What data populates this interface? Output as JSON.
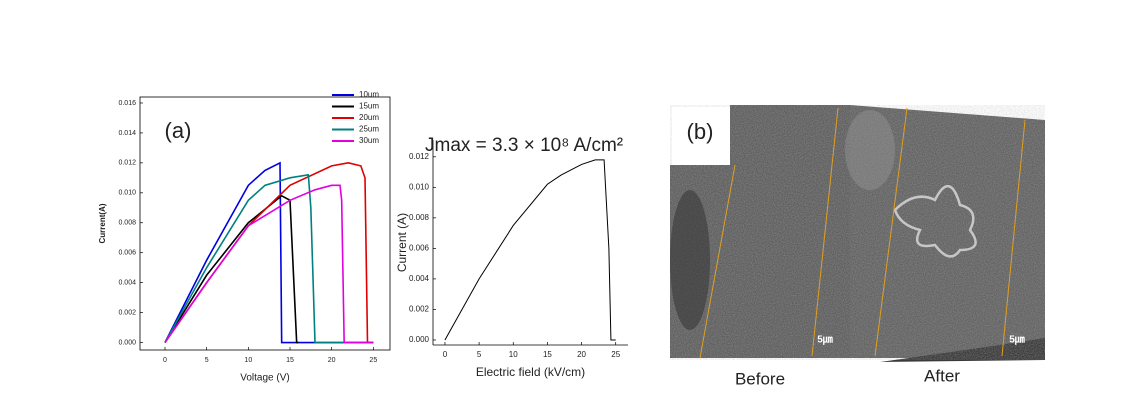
{
  "chart_data": [
    {
      "type": "line",
      "annotation": "(a)",
      "x_label": "Voltage (V)",
      "y_label": "Current(A)",
      "xlim": [
        -3,
        27
      ],
      "xticks": [
        0,
        5,
        10,
        15,
        20,
        25
      ],
      "ylim": [
        -0.0005,
        0.0164
      ],
      "yticks": [
        {
          "value": 0,
          "label": "0.000"
        },
        {
          "value": 0.002,
          "label": "0.002"
        },
        {
          "value": 0.004,
          "label": "0.004"
        },
        {
          "value": 0.006,
          "label": "0.006"
        },
        {
          "value": 0.008,
          "label": "0.008"
        },
        {
          "value": 0.01,
          "label": "0.010"
        },
        {
          "value": 0.012,
          "label": "0.012"
        },
        {
          "value": 0.014,
          "label": "0.014"
        },
        {
          "value": 0.016,
          "label": "0.016"
        }
      ],
      "legend": "upper right",
      "series": [
        {
          "name": "10um",
          "color": "#0000e0",
          "x": [
            0,
            5,
            10,
            12,
            13.8,
            14,
            25
          ],
          "values": [
            0,
            0.0055,
            0.0105,
            0.0115,
            0.012,
            0,
            0
          ]
        },
        {
          "name": "15um",
          "color": "#000000",
          "x": [
            0,
            5,
            10,
            14,
            15,
            15.8,
            16
          ],
          "values": [
            0,
            0.0045,
            0.008,
            0.0098,
            0.0095,
            0,
            0
          ]
        },
        {
          "name": "20um",
          "color": "#e00000",
          "x": [
            0,
            5,
            10,
            15,
            20,
            22,
            23.5,
            24,
            24.3,
            25
          ],
          "values": [
            0,
            0.004,
            0.0078,
            0.0105,
            0.0118,
            0.012,
            0.0118,
            0.011,
            0,
            0
          ]
        },
        {
          "name": "25um",
          "color": "#008080",
          "x": [
            0,
            5,
            10,
            12,
            15,
            17.2,
            17.5,
            18,
            25
          ],
          "values": [
            0,
            0.005,
            0.0095,
            0.0105,
            0.011,
            0.0112,
            0.009,
            0,
            0
          ]
        },
        {
          "name": "30um",
          "color": "#e000e0",
          "x": [
            0,
            5,
            10,
            15,
            18,
            20,
            21,
            21.2,
            21.5,
            25
          ],
          "values": [
            0,
            0.004,
            0.0078,
            0.0095,
            0.0102,
            0.0105,
            0.0105,
            0.0095,
            0,
            0
          ]
        }
      ]
    },
    {
      "type": "line",
      "annotation": "Jmax = 3.3 × 10⁸ A/cm²",
      "x_label": "Electric field (kV/cm)",
      "y_label": "Current (A)",
      "xlim": [
        -1.75,
        26.8
      ],
      "xticks": [
        0,
        5,
        10,
        15,
        20,
        25
      ],
      "ylim": [
        -0.00033,
        0.0131
      ],
      "yticks": [
        {
          "value": 0,
          "label": "0.000"
        },
        {
          "value": 0.002,
          "label": "0.002"
        },
        {
          "value": 0.004,
          "label": "0.004"
        },
        {
          "value": 0.006,
          "label": "0.006"
        },
        {
          "value": 0.008,
          "label": "0.008"
        },
        {
          "value": 0.01,
          "label": "0.010"
        },
        {
          "value": 0.012,
          "label": "0.012"
        }
      ],
      "series": [
        {
          "color": "#000000",
          "x": [
            0,
            5,
            10,
            15,
            17,
            20,
            22,
            23.3,
            24,
            24.3,
            25
          ],
          "values": [
            0,
            0.004,
            0.0075,
            0.0102,
            0.0108,
            0.0115,
            0.0118,
            0.0118,
            0.006,
            0,
            0
          ]
        }
      ]
    }
  ],
  "images": {
    "label": "(b)",
    "before": {
      "caption": "Before",
      "scale": "5㎛"
    },
    "after": {
      "caption": "After",
      "scale": "5㎛"
    }
  }
}
